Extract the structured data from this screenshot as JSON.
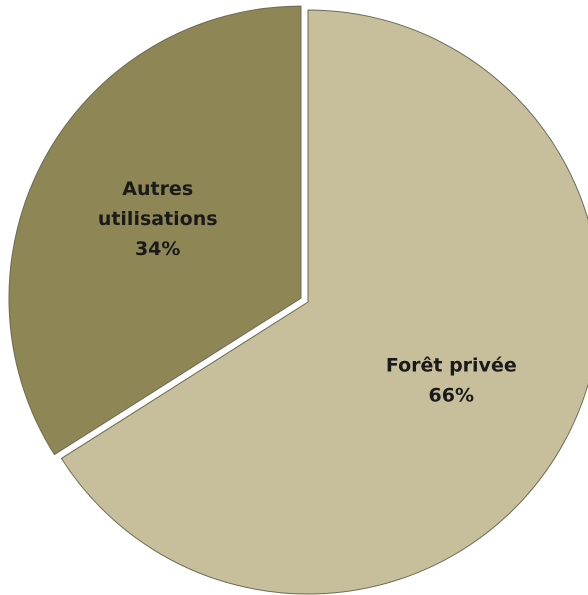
{
  "chart_data": {
    "type": "pie",
    "title": "",
    "slices": [
      {
        "label_lines": [
          "Forêt privée"
        ],
        "percent_label": "66%",
        "value": 66,
        "color": "#c7bf9b"
      },
      {
        "label_lines": [
          "Autres",
          "utilisations"
        ],
        "percent_label": "34%",
        "value": 34,
        "color": "#8f8656"
      }
    ],
    "edge_color": "#6b6a55",
    "exploded_slice": "Autres utilisations",
    "legend": "none"
  }
}
